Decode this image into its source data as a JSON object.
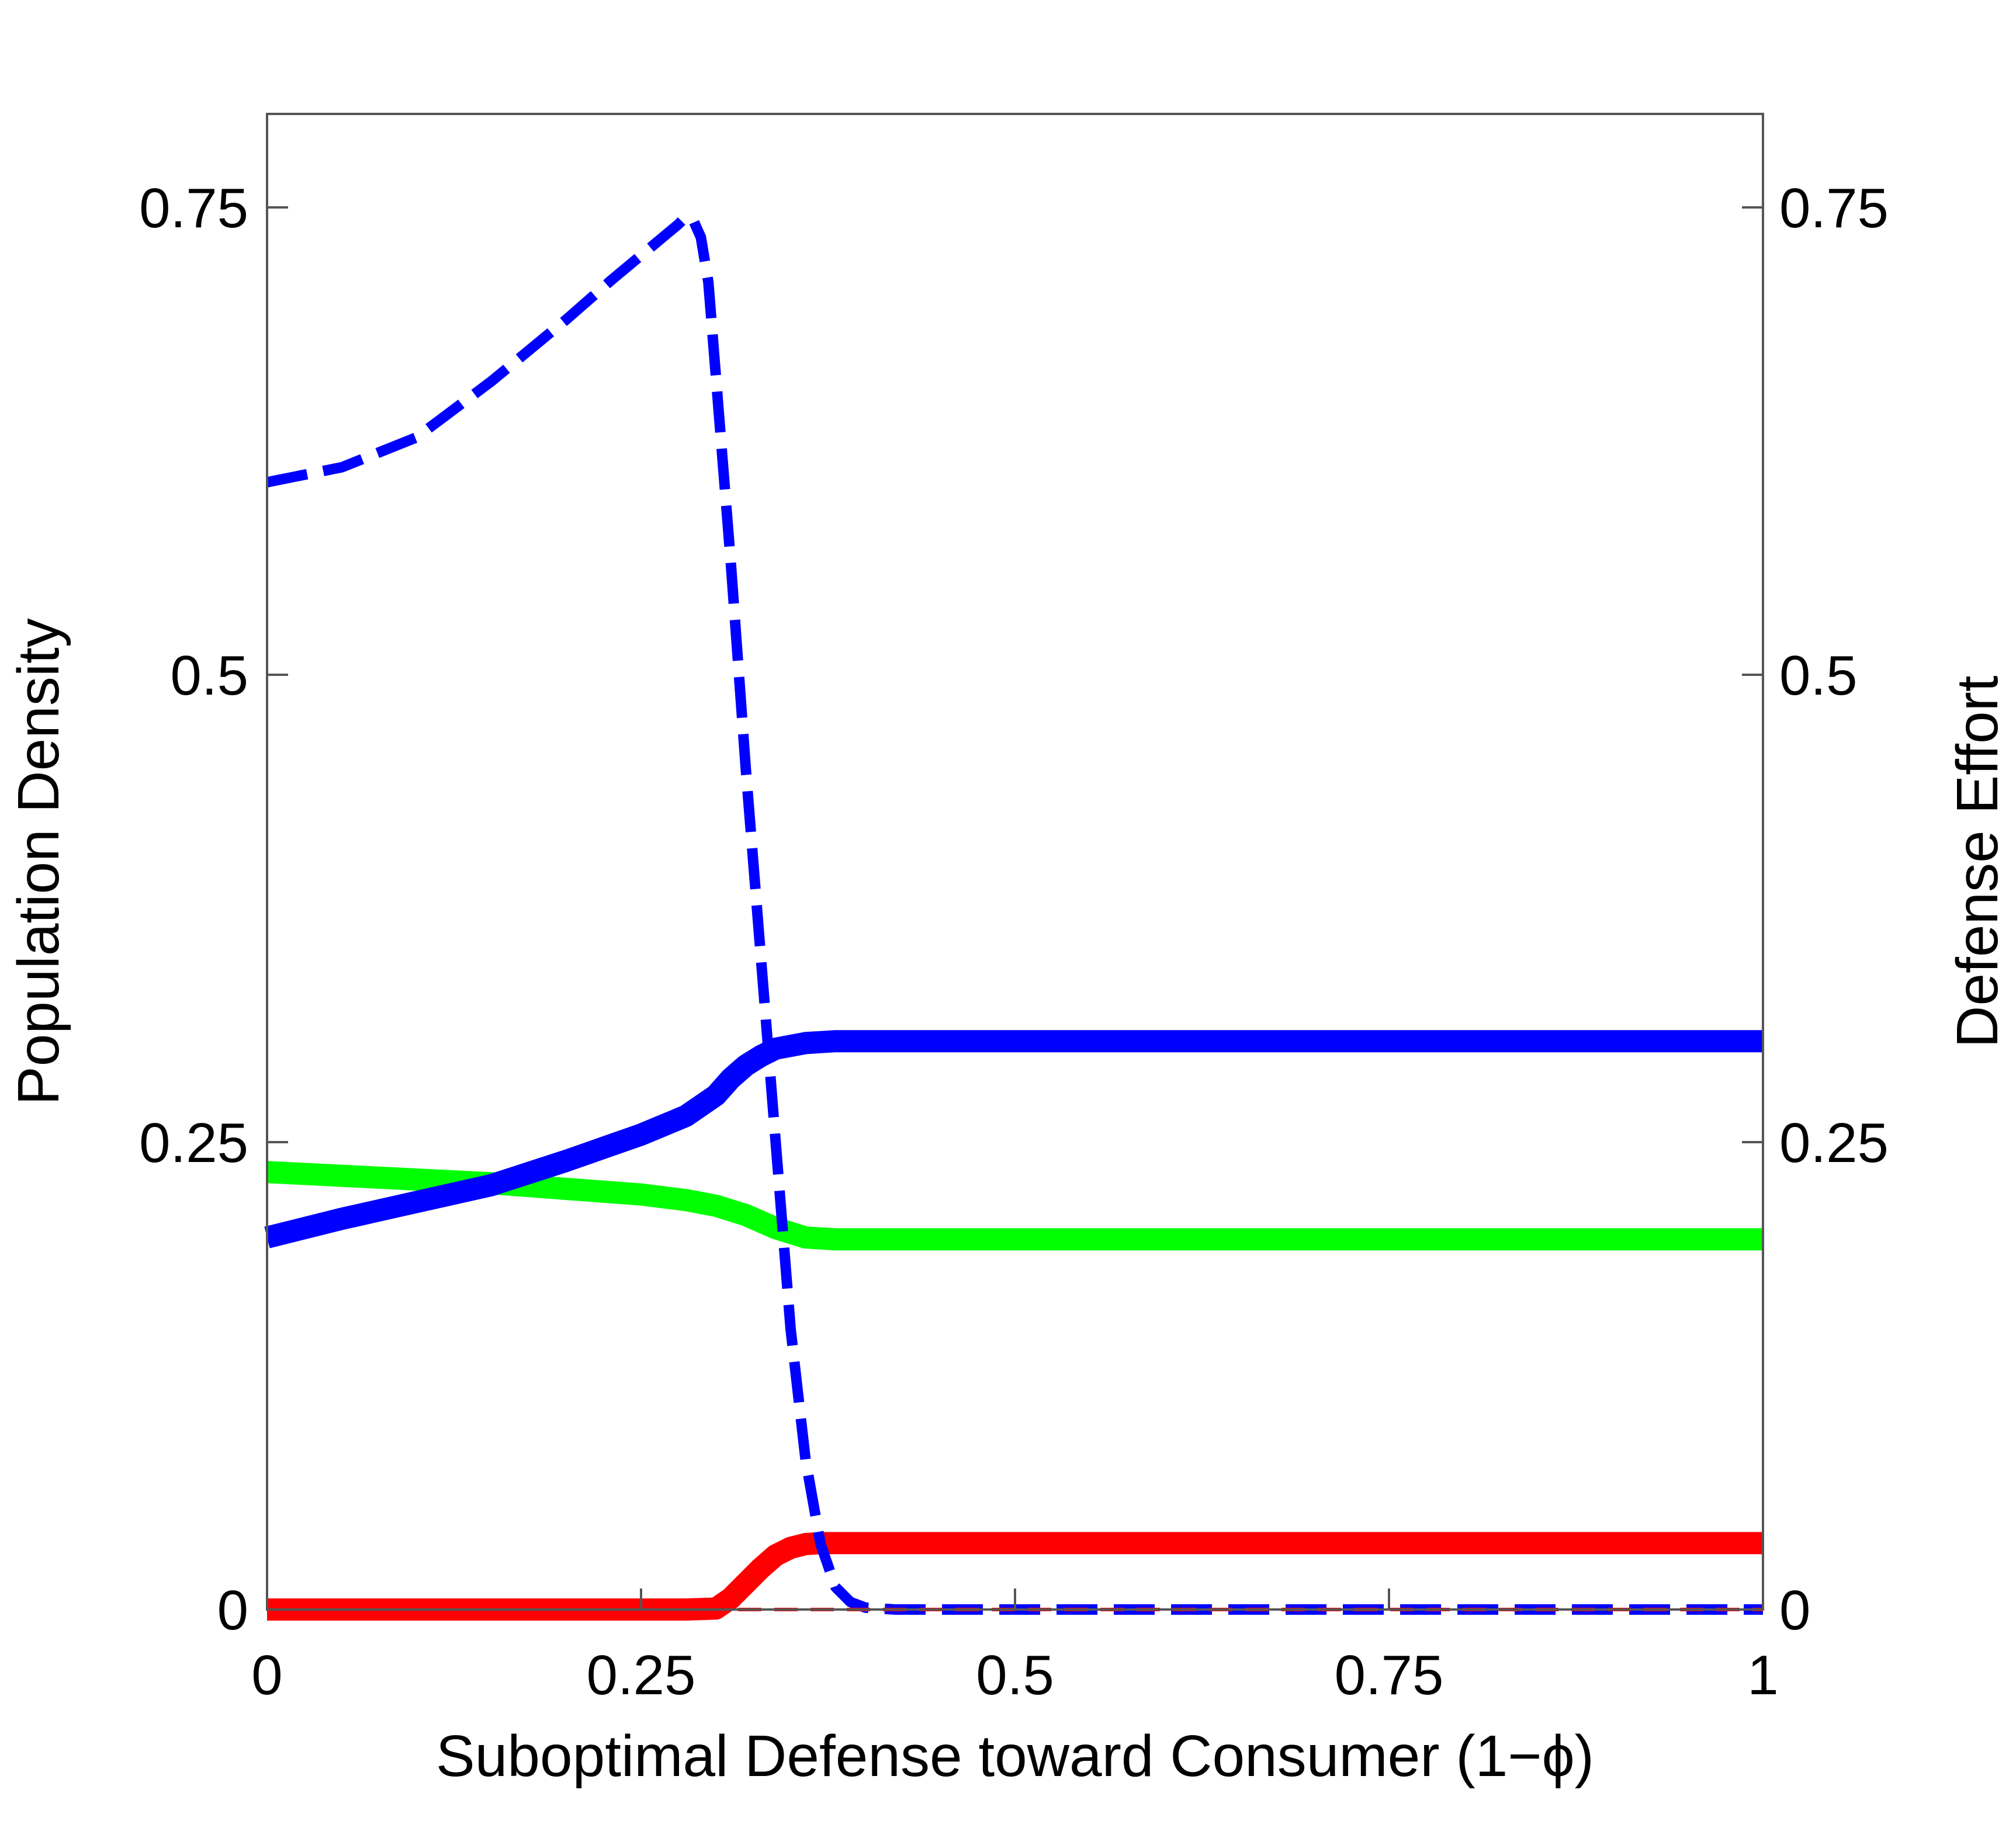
{
  "chart_data": {
    "type": "line",
    "xlabel": "Suboptimal Defense toward Consumer (1−ϕ)",
    "ylabel_left": "Population Density",
    "ylabel_right": "Defense Effort",
    "xlim": [
      0,
      1
    ],
    "ylim": [
      0,
      0.8
    ],
    "x_ticks": [
      {
        "value": 0,
        "label": "0"
      },
      {
        "value": 0.25,
        "label": "0.25"
      },
      {
        "value": 0.5,
        "label": "0.5"
      },
      {
        "value": 0.75,
        "label": "0.75"
      },
      {
        "value": 1,
        "label": "1"
      }
    ],
    "y_ticks_left": [
      {
        "value": 0,
        "label": "0"
      },
      {
        "value": 0.25,
        "label": "0.25"
      },
      {
        "value": 0.5,
        "label": "0.5"
      },
      {
        "value": 0.75,
        "label": "0.75"
      }
    ],
    "y_ticks_right": [
      {
        "value": 0,
        "label": "0"
      },
      {
        "value": 0.25,
        "label": "0.25"
      },
      {
        "value": 0.5,
        "label": "0.5"
      },
      {
        "value": 0.75,
        "label": "0.75"
      }
    ],
    "grid": false,
    "series": [
      {
        "color": "#00ff00",
        "style": "solid",
        "axis": "left",
        "points": [
          [
            0,
            0.234
          ],
          [
            0.05,
            0.232
          ],
          [
            0.1,
            0.23
          ],
          [
            0.15,
            0.228
          ],
          [
            0.2,
            0.225
          ],
          [
            0.25,
            0.222
          ],
          [
            0.28,
            0.219
          ],
          [
            0.3,
            0.216
          ],
          [
            0.32,
            0.211
          ],
          [
            0.34,
            0.204
          ],
          [
            0.36,
            0.199
          ],
          [
            0.38,
            0.198
          ],
          [
            0.4,
            0.198
          ],
          [
            0.5,
            0.198
          ],
          [
            0.6,
            0.198
          ],
          [
            0.7,
            0.198
          ],
          [
            0.8,
            0.198
          ],
          [
            0.9,
            0.198
          ],
          [
            1,
            0.198
          ]
        ]
      },
      {
        "color": "#0000ff",
        "style": "solid",
        "axis": "left",
        "points": [
          [
            0,
            0.199
          ],
          [
            0.05,
            0.209
          ],
          [
            0.1,
            0.218
          ],
          [
            0.15,
            0.227
          ],
          [
            0.2,
            0.24
          ],
          [
            0.25,
            0.254
          ],
          [
            0.28,
            0.264
          ],
          [
            0.3,
            0.275
          ],
          [
            0.31,
            0.284
          ],
          [
            0.32,
            0.291
          ],
          [
            0.33,
            0.296
          ],
          [
            0.34,
            0.3
          ],
          [
            0.36,
            0.303
          ],
          [
            0.38,
            0.304
          ],
          [
            0.4,
            0.304
          ],
          [
            0.5,
            0.304
          ],
          [
            0.6,
            0.304
          ],
          [
            0.7,
            0.304
          ],
          [
            0.8,
            0.304
          ],
          [
            0.9,
            0.304
          ],
          [
            1,
            0.304
          ]
        ]
      },
      {
        "color": "#ff0000",
        "style": "solid",
        "axis": "left",
        "points": [
          [
            0,
            0
          ],
          [
            0.1,
            0
          ],
          [
            0.2,
            0
          ],
          [
            0.25,
            0
          ],
          [
            0.28,
            0
          ],
          [
            0.3,
            0.0005
          ],
          [
            0.31,
            0.006
          ],
          [
            0.32,
            0.014
          ],
          [
            0.33,
            0.022
          ],
          [
            0.34,
            0.029
          ],
          [
            0.35,
            0.033
          ],
          [
            0.36,
            0.035
          ],
          [
            0.37,
            0.0355
          ],
          [
            0.4,
            0.0355
          ],
          [
            0.5,
            0.0355
          ],
          [
            0.6,
            0.0355
          ],
          [
            0.7,
            0.0355
          ],
          [
            0.8,
            0.0355
          ],
          [
            0.9,
            0.0355
          ],
          [
            1,
            0.0355
          ]
        ]
      },
      {
        "color": "#0000ff",
        "style": "dashed",
        "axis": "right",
        "points": [
          [
            0,
            0.603
          ],
          [
            0.05,
            0.611
          ],
          [
            0.1,
            0.627
          ],
          [
            0.15,
            0.657
          ],
          [
            0.2,
            0.69
          ],
          [
            0.23,
            0.711
          ],
          [
            0.26,
            0.731
          ],
          [
            0.275,
            0.741
          ],
          [
            0.28,
            0.745
          ],
          [
            0.285,
            0.743
          ],
          [
            0.29,
            0.734
          ],
          [
            0.295,
            0.71
          ],
          [
            0.3,
            0.66
          ],
          [
            0.31,
            0.56
          ],
          [
            0.32,
            0.45
          ],
          [
            0.33,
            0.35
          ],
          [
            0.34,
            0.25
          ],
          [
            0.35,
            0.15
          ],
          [
            0.36,
            0.08
          ],
          [
            0.37,
            0.035
          ],
          [
            0.38,
            0.012
          ],
          [
            0.39,
            0.004
          ],
          [
            0.4,
            0.001
          ],
          [
            0.42,
            0
          ],
          [
            0.5,
            0
          ],
          [
            0.6,
            0
          ],
          [
            0.7,
            0
          ],
          [
            0.8,
            0
          ],
          [
            0.9,
            0
          ],
          [
            1,
            0
          ]
        ]
      },
      {
        "color": "#ff0000",
        "style": "dashed",
        "axis": "right",
        "points": [
          [
            0,
            0
          ],
          [
            0.25,
            0
          ],
          [
            0.5,
            0
          ],
          [
            0.75,
            0
          ],
          [
            1,
            0
          ]
        ]
      }
    ]
  }
}
